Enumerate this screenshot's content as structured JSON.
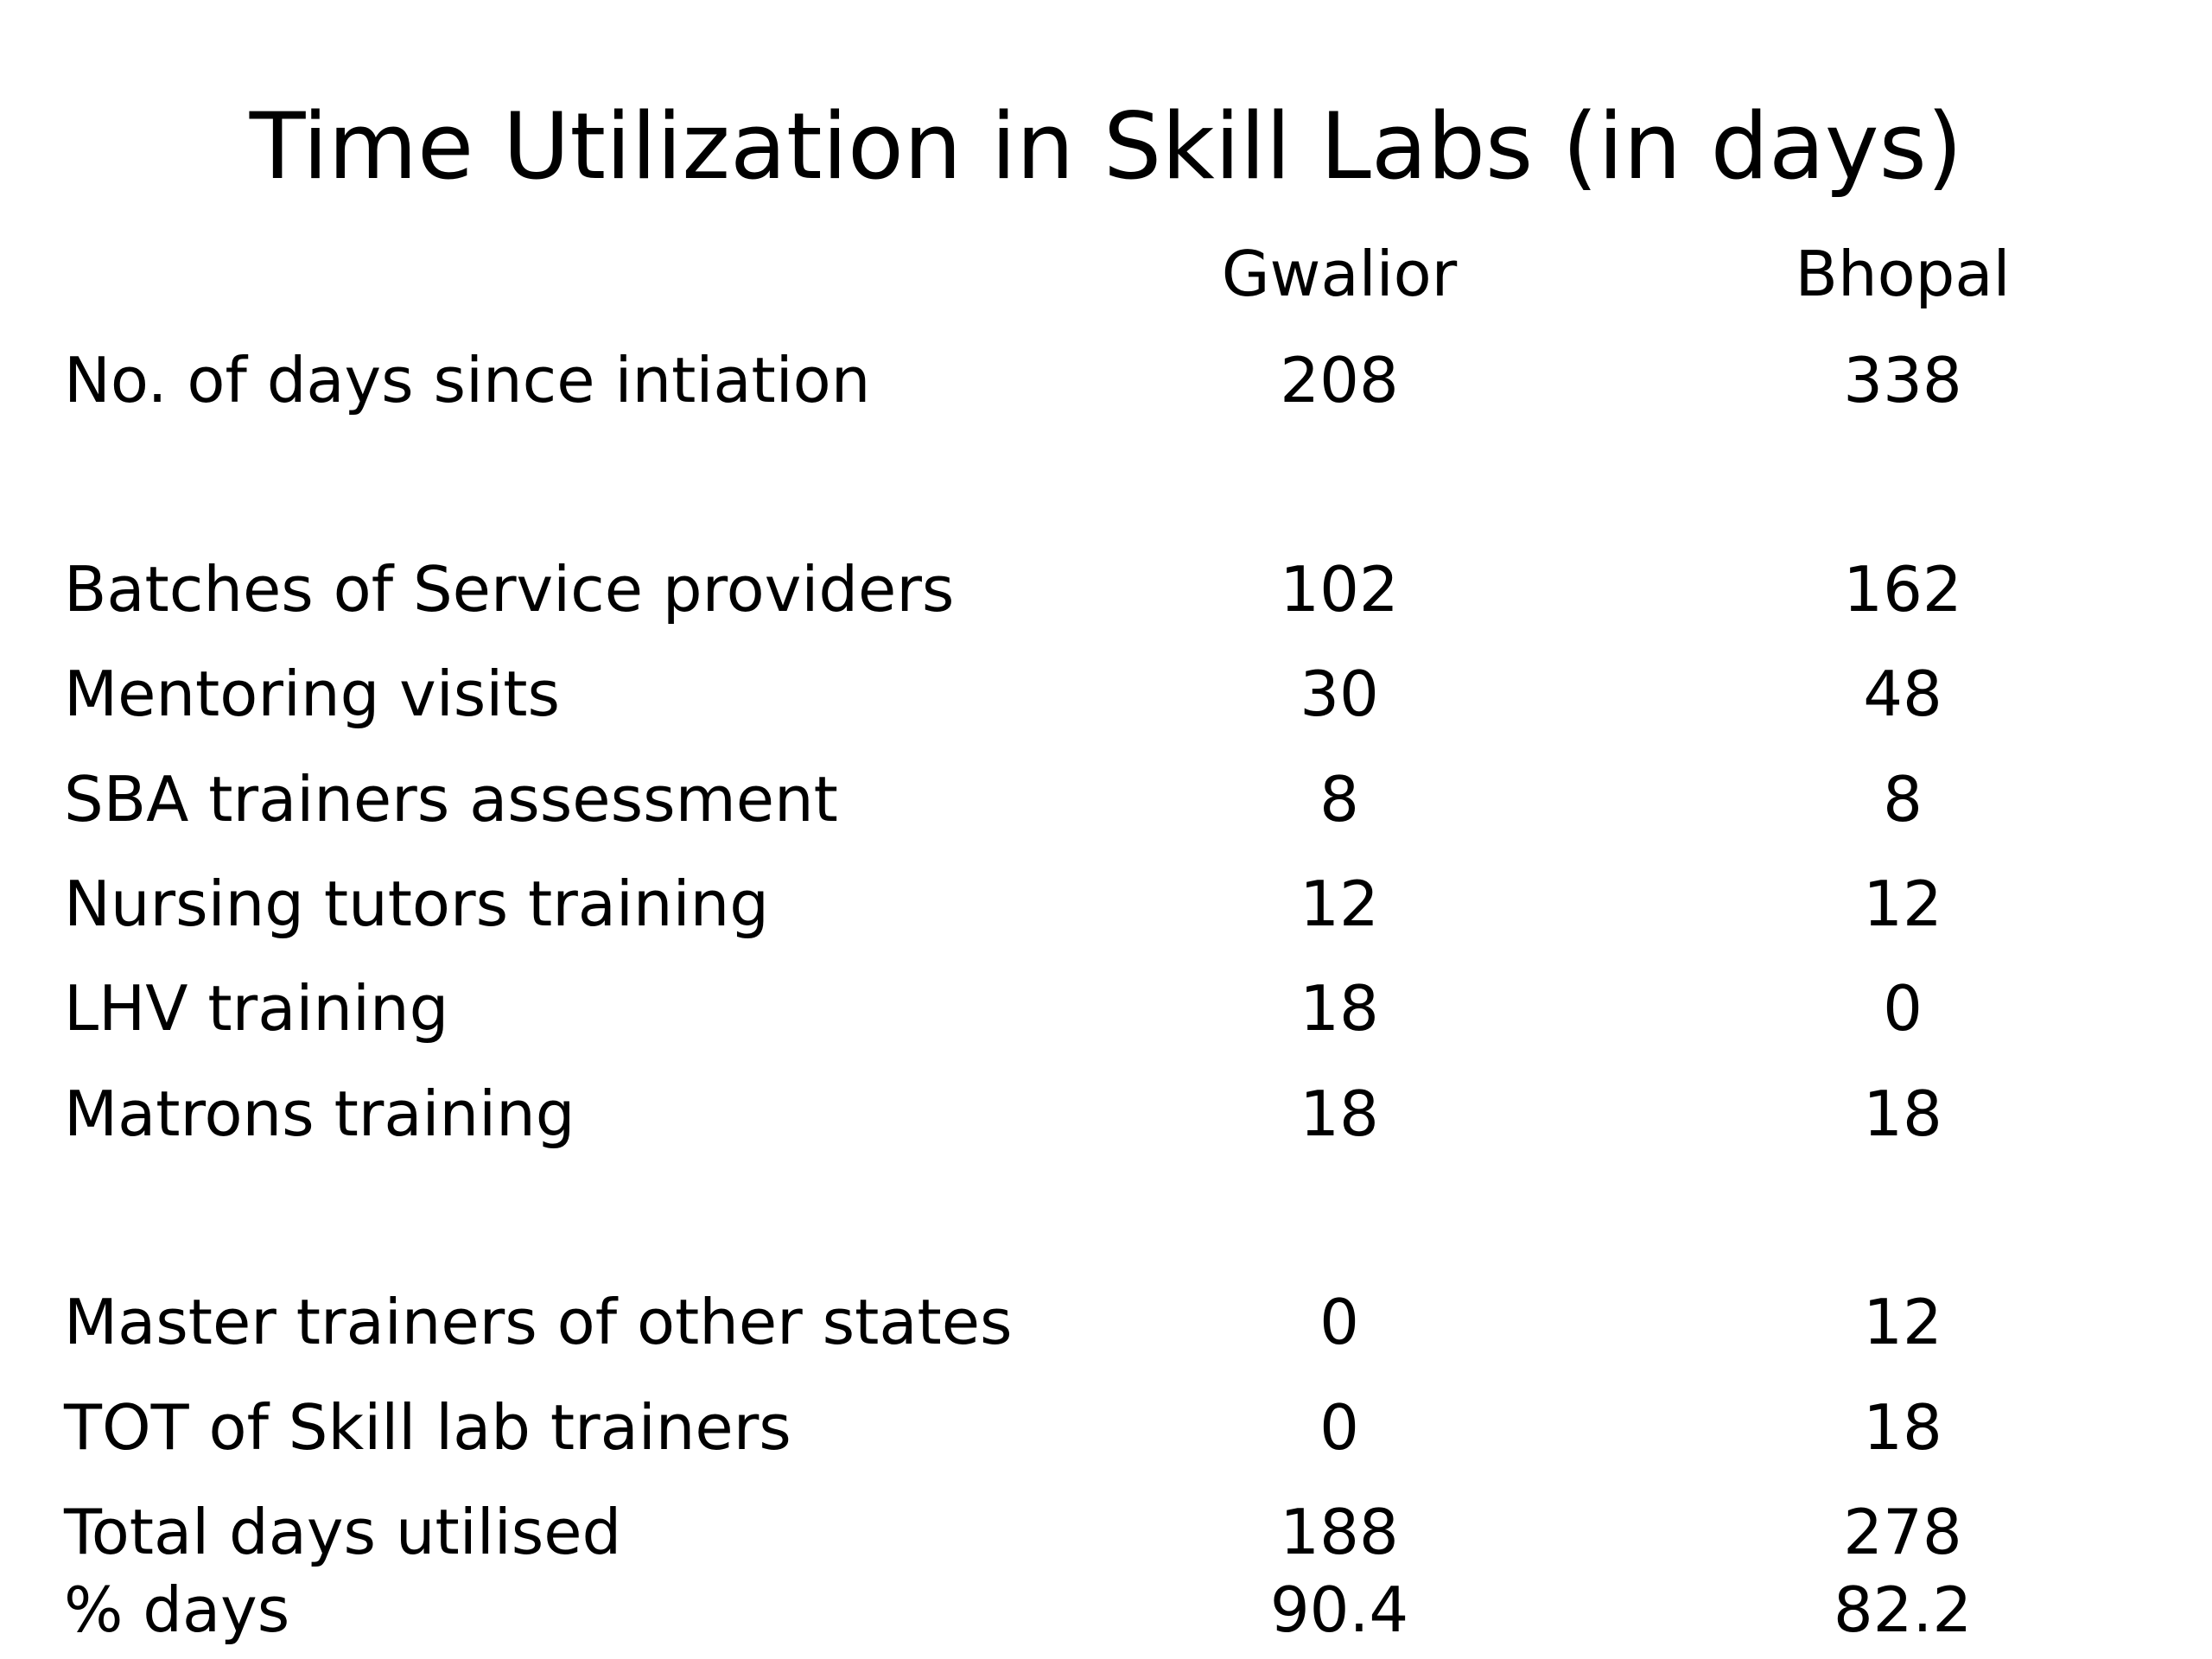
{
  "title": "Time Utilization in Skill Labs (in days)",
  "table": {
    "columns": [
      "Gwalior",
      "Bhopal"
    ],
    "rows": [
      {
        "label": "No. of days since intiation",
        "gwalior": "208",
        "bhopal": "338"
      },
      {
        "label": "Batches of Service providers",
        "gwalior": "102",
        "bhopal": "162"
      },
      {
        "label": "Mentoring visits",
        "gwalior": "30",
        "bhopal": "48"
      },
      {
        "label": "SBA trainers assessment",
        "gwalior": "8",
        "bhopal": "8"
      },
      {
        "label": "Nursing tutors training",
        "gwalior": "12",
        "bhopal": "12"
      },
      {
        "label": "LHV training",
        "gwalior": "18",
        "bhopal": "0"
      },
      {
        "label": "Matrons training",
        "gwalior": "18",
        "bhopal": "18"
      },
      {
        "label": "Master trainers of other states",
        "gwalior": "0",
        "bhopal": "12"
      },
      {
        "label": "TOT of Skill lab trainers",
        "gwalior": "0",
        "bhopal": "18"
      },
      {
        "label": "Total days utilised",
        "gwalior": "188",
        "bhopal": "278"
      },
      {
        "label": "% days",
        "gwalior": "90.4",
        "bhopal": "82.2"
      }
    ]
  }
}
